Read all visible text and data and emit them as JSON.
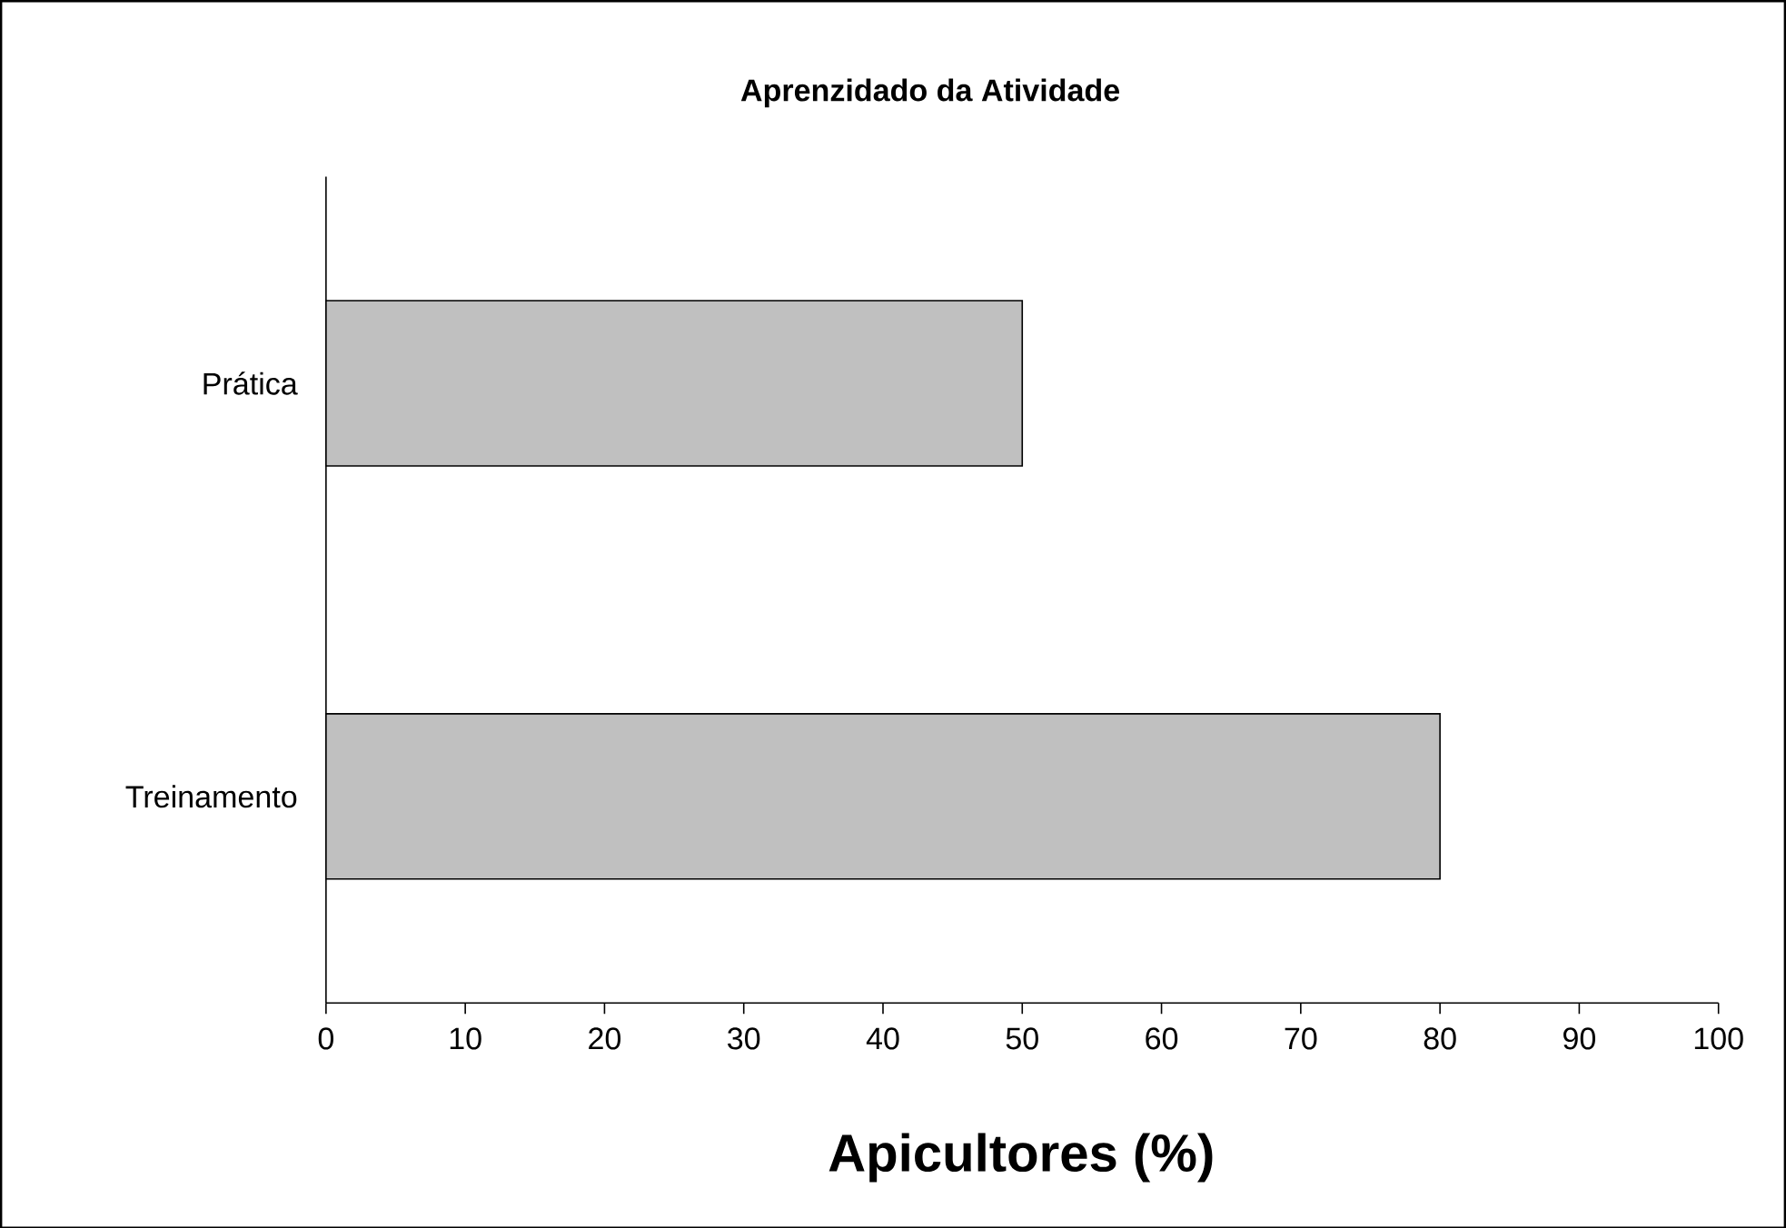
{
  "chart_data": {
    "type": "bar",
    "orientation": "horizontal",
    "title": "Aprenzidado da Atividade",
    "xlabel": "Apicultores (%)",
    "categories": [
      "Prática",
      "Treinamento"
    ],
    "values": [
      50,
      80
    ],
    "color": "#c0c0c0",
    "xlim": [
      0,
      100
    ],
    "xticks": [
      0,
      10,
      20,
      30,
      40,
      50,
      60,
      70,
      80,
      90,
      100
    ]
  }
}
